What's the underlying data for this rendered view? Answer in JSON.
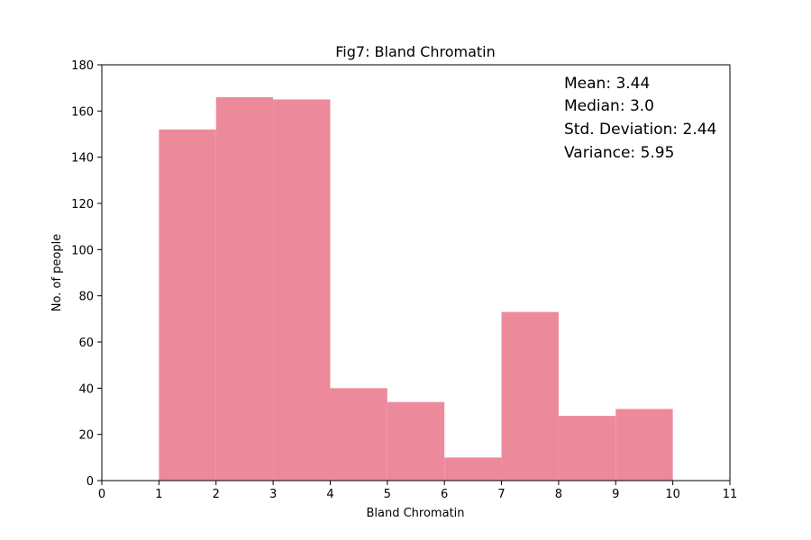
{
  "chart_data": {
    "type": "bar",
    "title": "Fig7: Bland Chromatin",
    "xlabel": "Bland Chromatin",
    "ylabel": "No. of people",
    "xlim": [
      0,
      11
    ],
    "ylim": [
      0,
      180
    ],
    "xticks": [
      0,
      1,
      2,
      3,
      4,
      5,
      6,
      7,
      8,
      9,
      10,
      11
    ],
    "yticks": [
      0,
      20,
      40,
      60,
      80,
      100,
      120,
      140,
      160,
      180
    ],
    "bins": [
      {
        "start": 1,
        "end": 2,
        "value": 152
      },
      {
        "start": 2,
        "end": 3,
        "value": 166
      },
      {
        "start": 3,
        "end": 4,
        "value": 165
      },
      {
        "start": 4,
        "end": 5,
        "value": 40
      },
      {
        "start": 5,
        "end": 6,
        "value": 34
      },
      {
        "start": 6,
        "end": 7,
        "value": 10
      },
      {
        "start": 7,
        "end": 8,
        "value": 73
      },
      {
        "start": 8,
        "end": 9,
        "value": 28
      },
      {
        "start": 9,
        "end": 10,
        "value": 31
      }
    ],
    "bar_color": "#ec8a9c",
    "grid": false,
    "annotations": [
      "Mean: 3.44",
      "Median: 3.0",
      "Std. Deviation: 2.44",
      "Variance: 5.95"
    ]
  }
}
